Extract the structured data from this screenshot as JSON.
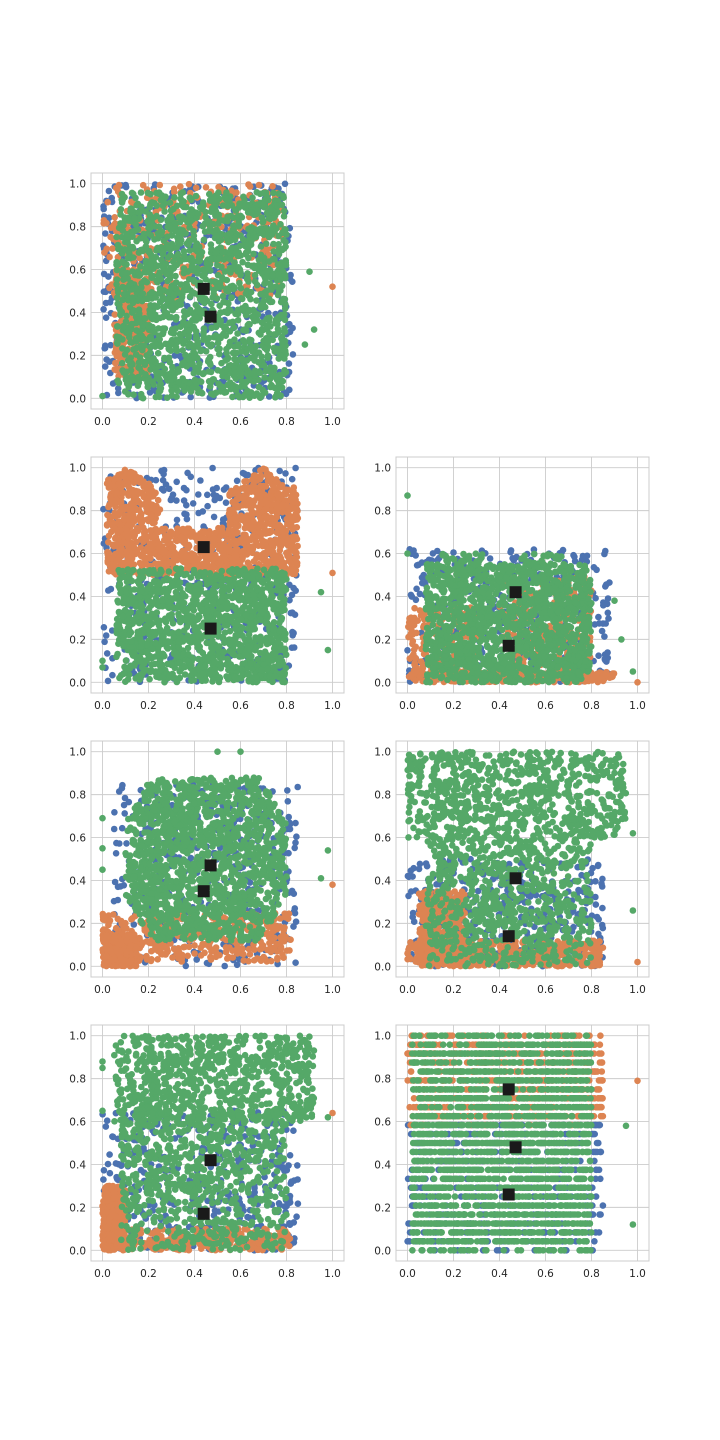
{
  "chart_data": [
    {
      "type": "scatter",
      "panel": "row-1-col-1",
      "xlim": [
        -0.05,
        1.05
      ],
      "ylim": [
        -0.05,
        1.05
      ],
      "xticks": [
        "0.0",
        "0.2",
        "0.4",
        "0.6",
        "0.8",
        "1.0"
      ],
      "yticks": [
        "0.0",
        "0.2",
        "0.4",
        "0.6",
        "0.8",
        "1.0"
      ],
      "grid": true,
      "centroids": [
        {
          "x": 0.44,
          "y": 0.51
        },
        {
          "x": 0.47,
          "y": 0.38
        }
      ],
      "clusters": [
        {
          "color": "#4c72b0",
          "count": 520,
          "blobs": [
            {
              "x": [
                0.0,
                0.83
              ],
              "y": [
                0.0,
                1.0
              ]
            }
          ]
        },
        {
          "color": "#dd8452",
          "count": 650,
          "blobs": [
            {
              "x": [
                0.0,
                0.78
              ],
              "y": [
                0.45,
                1.0
              ]
            },
            {
              "x": [
                0.05,
                0.2
              ],
              "y": [
                0.1,
                0.6
              ]
            }
          ],
          "extras": [
            {
              "x": 1.0,
              "y": 0.52
            }
          ]
        },
        {
          "color": "#55a868",
          "count": 1500,
          "blobs": [
            {
              "x": [
                0.06,
                0.8
              ],
              "y": [
                0.0,
                0.96
              ]
            }
          ],
          "extras": [
            {
              "x": 0.92,
              "y": 0.32
            },
            {
              "x": 0.9,
              "y": 0.59
            },
            {
              "x": 0.88,
              "y": 0.25
            },
            {
              "x": 0.0,
              "y": 0.01
            }
          ]
        }
      ]
    },
    {
      "type": "scatter",
      "panel": "row-2-col-1",
      "xlim": [
        -0.05,
        1.05
      ],
      "ylim": [
        -0.05,
        1.05
      ],
      "xticks": [
        "0.0",
        "0.2",
        "0.4",
        "0.6",
        "0.8",
        "1.0"
      ],
      "yticks": [
        "0.0",
        "0.2",
        "0.4",
        "0.6",
        "0.8",
        "1.0"
      ],
      "grid": true,
      "centroids": [
        {
          "x": 0.44,
          "y": 0.63
        },
        {
          "x": 0.47,
          "y": 0.25
        }
      ],
      "clusters": [
        {
          "color": "#4c72b0",
          "count": 420,
          "blobs": [
            {
              "x": [
                0.0,
                0.85
              ],
              "y": [
                0.0,
                1.0
              ]
            }
          ]
        },
        {
          "color": "#dd8452",
          "count": 1300,
          "shape": "butterfly",
          "blobs": [
            {
              "x": [
                0.02,
                0.85
              ],
              "y": [
                0.5,
                1.0
              ]
            }
          ],
          "extras": [
            {
              "x": 1.0,
              "y": 0.51
            }
          ]
        },
        {
          "color": "#55a868",
          "count": 1300,
          "blobs": [
            {
              "x": [
                0.06,
                0.8
              ],
              "y": [
                0.0,
                0.53
              ]
            }
          ],
          "extras": [
            {
              "x": 0.98,
              "y": 0.15
            },
            {
              "x": 0.95,
              "y": 0.42
            },
            {
              "x": 0.0,
              "y": 0.07
            },
            {
              "x": 0.0,
              "y": 0.1
            }
          ]
        }
      ]
    },
    {
      "type": "scatter",
      "panel": "row-2-col-2",
      "xlim": [
        -0.05,
        1.05
      ],
      "ylim": [
        -0.05,
        1.05
      ],
      "xticks": [
        "0.0",
        "0.2",
        "0.4",
        "0.6",
        "0.8",
        "1.0"
      ],
      "yticks": [
        "0.0",
        "0.2",
        "0.4",
        "0.6",
        "0.8",
        "1.0"
      ],
      "grid": true,
      "centroids": [
        {
          "x": 0.47,
          "y": 0.42
        },
        {
          "x": 0.44,
          "y": 0.17
        }
      ],
      "clusters": [
        {
          "color": "#4c72b0",
          "count": 380,
          "blobs": [
            {
              "x": [
                0.0,
                0.88
              ],
              "y": [
                0.0,
                0.62
              ]
            }
          ]
        },
        {
          "color": "#dd8452",
          "count": 700,
          "blobs": [
            {
              "x": [
                0.0,
                0.3
              ],
              "y": [
                0.0,
                0.35
              ]
            },
            {
              "x": [
                0.05,
                0.9
              ],
              "y": [
                0.0,
                0.05
              ]
            },
            {
              "x": [
                0.4,
                0.8
              ],
              "y": [
                0.0,
                0.5
              ]
            }
          ],
          "extras": [
            {
              "x": 1.0,
              "y": 0.0
            }
          ]
        },
        {
          "color": "#55a868",
          "count": 1500,
          "shape": "twin-peaks",
          "blobs": [
            {
              "x": [
                0.08,
                0.8
              ],
              "y": [
                0.0,
                0.6
              ]
            }
          ],
          "extras": [
            {
              "x": 0.0,
              "y": 0.87
            },
            {
              "x": 0.0,
              "y": 0.6
            },
            {
              "x": 0.98,
              "y": 0.05
            },
            {
              "x": 0.93,
              "y": 0.2
            },
            {
              "x": 0.9,
              "y": 0.38
            }
          ]
        }
      ]
    },
    {
      "type": "scatter",
      "panel": "row-3-col-1",
      "xlim": [
        -0.05,
        1.05
      ],
      "ylim": [
        -0.05,
        1.05
      ],
      "xticks": [
        "0.0",
        "0.2",
        "0.4",
        "0.6",
        "0.8",
        "1.0"
      ],
      "yticks": [
        "0.0",
        "0.2",
        "0.4",
        "0.6",
        "0.8",
        "1.0"
      ],
      "grid": true,
      "centroids": [
        {
          "x": 0.47,
          "y": 0.47
        },
        {
          "x": 0.44,
          "y": 0.35
        }
      ],
      "clusters": [
        {
          "color": "#4c72b0",
          "count": 400,
          "blobs": [
            {
              "x": [
                0.05,
                0.85
              ],
              "y": [
                0.0,
                0.85
              ]
            }
          ]
        },
        {
          "color": "#dd8452",
          "count": 700,
          "blobs": [
            {
              "x": [
                0.0,
                0.82
              ],
              "y": [
                0.02,
                0.25
              ]
            },
            {
              "x": [
                0.0,
                0.15
              ],
              "y": [
                0.0,
                0.15
              ]
            }
          ],
          "extras": [
            {
              "x": 1.0,
              "y": 0.38
            }
          ]
        },
        {
          "color": "#55a868",
          "count": 1500,
          "shape": "diamond",
          "blobs": [
            {
              "x": [
                0.1,
                0.8
              ],
              "y": [
                0.1,
                0.88
              ]
            }
          ],
          "extras": [
            {
              "x": 0.0,
              "y": 0.69
            },
            {
              "x": 0.0,
              "y": 0.55
            },
            {
              "x": 0.0,
              "y": 0.45
            },
            {
              "x": 0.98,
              "y": 0.54
            },
            {
              "x": 0.95,
              "y": 0.41
            },
            {
              "x": 0.5,
              "y": 1.0
            },
            {
              "x": 0.6,
              "y": 1.0
            }
          ]
        }
      ]
    },
    {
      "type": "scatter",
      "panel": "row-3-col-2",
      "xlim": [
        -0.05,
        1.05
      ],
      "ylim": [
        -0.05,
        1.05
      ],
      "xticks": [
        "0.0",
        "0.2",
        "0.4",
        "0.6",
        "0.8",
        "1.0"
      ],
      "yticks": [
        "0.0",
        "0.2",
        "0.4",
        "0.6",
        "0.8",
        "1.0"
      ],
      "grid": true,
      "centroids": [
        {
          "x": 0.47,
          "y": 0.41
        },
        {
          "x": 0.44,
          "y": 0.14
        }
      ],
      "clusters": [
        {
          "color": "#4c72b0",
          "count": 400,
          "blobs": [
            {
              "x": [
                0.0,
                0.85
              ],
              "y": [
                0.0,
                0.5
              ]
            }
          ]
        },
        {
          "color": "#dd8452",
          "count": 700,
          "blobs": [
            {
              "x": [
                0.0,
                0.85
              ],
              "y": [
                0.0,
                0.12
              ]
            },
            {
              "x": [
                0.05,
                0.25
              ],
              "y": [
                0.0,
                0.35
              ]
            }
          ],
          "extras": [
            {
              "x": 1.0,
              "y": 0.02
            }
          ]
        },
        {
          "color": "#55a868",
          "count": 1500,
          "blobs": [
            {
              "x": [
                0.08,
                0.8
              ],
              "y": [
                0.0,
                0.6
              ]
            },
            {
              "x": [
                0.0,
                0.95
              ],
              "y": [
                0.6,
                1.0
              ]
            }
          ],
          "extras": [
            {
              "x": 0.98,
              "y": 0.26
            },
            {
              "x": 0.98,
              "y": 0.62
            },
            {
              "x": 0.9,
              "y": 0.96
            }
          ]
        }
      ]
    },
    {
      "type": "scatter",
      "panel": "row-4-col-1",
      "xlim": [
        -0.05,
        1.05
      ],
      "ylim": [
        -0.05,
        1.05
      ],
      "xticks": [
        "0.0",
        "0.2",
        "0.4",
        "0.6",
        "0.8",
        "1.0"
      ],
      "yticks": [
        "0.0",
        "0.2",
        "0.4",
        "0.6",
        "0.8",
        "1.0"
      ],
      "grid": true,
      "centroids": [
        {
          "x": 0.47,
          "y": 0.42
        },
        {
          "x": 0.44,
          "y": 0.17
        }
      ],
      "clusters": [
        {
          "color": "#4c72b0",
          "count": 400,
          "blobs": [
            {
              "x": [
                0.0,
                0.85
              ],
              "y": [
                0.0,
                0.65
              ]
            }
          ]
        },
        {
          "color": "#dd8452",
          "count": 600,
          "blobs": [
            {
              "x": [
                0.0,
                0.82
              ],
              "y": [
                0.0,
                0.1
              ]
            },
            {
              "x": [
                0.0,
                0.1
              ],
              "y": [
                0.0,
                0.3
              ]
            }
          ],
          "extras": [
            {
              "x": 1.0,
              "y": 0.64
            }
          ]
        },
        {
          "color": "#55a868",
          "count": 1500,
          "blobs": [
            {
              "x": [
                0.08,
                0.8
              ],
              "y": [
                0.0,
                0.65
              ]
            },
            {
              "x": [
                0.05,
                0.92
              ],
              "y": [
                0.6,
                1.0
              ]
            }
          ],
          "extras": [
            {
              "x": 0.0,
              "y": 0.88
            },
            {
              "x": 0.0,
              "y": 0.85
            },
            {
              "x": 0.0,
              "y": 0.65
            },
            {
              "x": 0.98,
              "y": 0.62
            }
          ]
        }
      ]
    },
    {
      "type": "scatter",
      "panel": "row-4-col-2",
      "xlim": [
        -0.05,
        1.05
      ],
      "ylim": [
        -0.05,
        1.05
      ],
      "xticks": [
        "0.0",
        "0.2",
        "0.4",
        "0.6",
        "0.8",
        "1.0"
      ],
      "yticks": [
        "0.0",
        "0.2",
        "0.4",
        "0.6",
        "0.8",
        "1.0"
      ],
      "grid": true,
      "pattern": "horizontal-bands",
      "centroids": [
        {
          "x": 0.44,
          "y": 0.75
        },
        {
          "x": 0.47,
          "y": 0.48
        },
        {
          "x": 0.44,
          "y": 0.26
        }
      ],
      "clusters": [
        {
          "color": "#4c72b0",
          "count": 600,
          "blobs": [
            {
              "x": [
                0.0,
                0.85
              ],
              "y": [
                0.0,
                0.6
              ]
            }
          ]
        },
        {
          "color": "#dd8452",
          "count": 700,
          "blobs": [
            {
              "x": [
                0.0,
                0.85
              ],
              "y": [
                0.6,
                1.0
              ]
            }
          ],
          "extras": [
            {
              "x": 1.0,
              "y": 0.79
            }
          ]
        },
        {
          "color": "#55a868",
          "count": 2200,
          "blobs": [
            {
              "x": [
                0.02,
                0.8
              ],
              "y": [
                0.0,
                1.0
              ]
            }
          ],
          "extras": [
            {
              "x": 0.98,
              "y": 0.12
            },
            {
              "x": 0.95,
              "y": 0.58
            }
          ]
        }
      ]
    }
  ]
}
